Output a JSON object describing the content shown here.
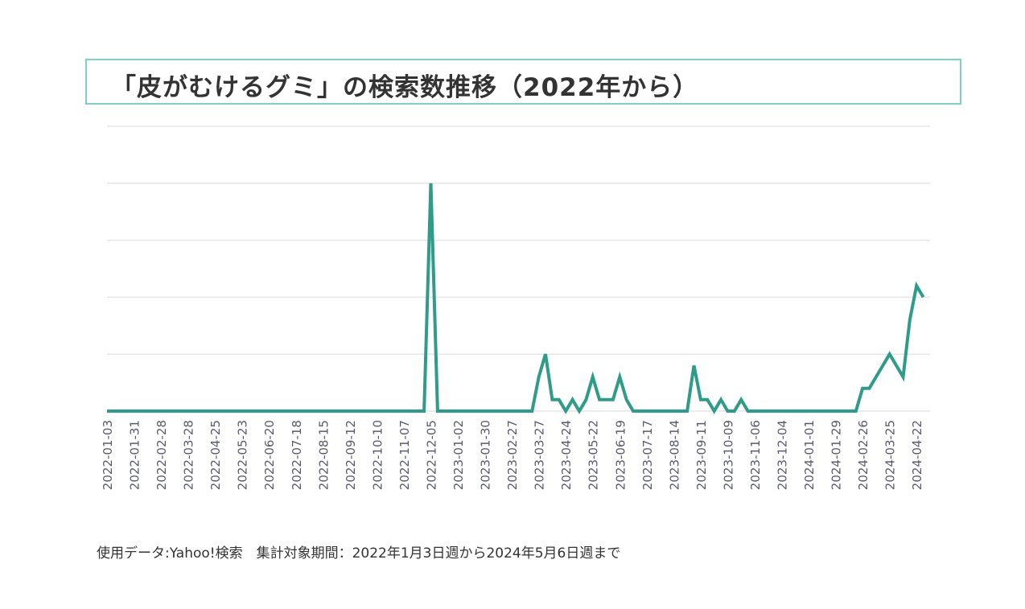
{
  "title": "「皮がむけるグミ」の検索数推移（2022年から）",
  "footer": "使用データ:Yahoo!検索　集計対象期間：2022年1月3日週から2024年5月6日週まで",
  "colors": {
    "line": "#2e9c88",
    "grid": "#e6e6e6",
    "tick_text": "#5a5a6e",
    "title_border": "#7fd2c2"
  },
  "chart_data": {
    "type": "line",
    "title": "「皮がむけるグミ」の検索数推移（2022年から）",
    "x_start": "2022-01-03",
    "x_end": "2024-05-06",
    "x_tick_labels": [
      "2022-01-03",
      "2022-01-31",
      "2022-02-28",
      "2022-03-28",
      "2022-04-25",
      "2022-05-23",
      "2022-06-20",
      "2022-07-18",
      "2022-08-15",
      "2022-09-12",
      "2022-10-10",
      "2022-11-07",
      "2022-12-05",
      "2023-01-02",
      "2023-01-30",
      "2023-02-27",
      "2023-03-27",
      "2023-04-24",
      "2023-05-22",
      "2023-06-19",
      "2023-07-17",
      "2023-08-14",
      "2023-09-11",
      "2023-10-09",
      "2023-11-06",
      "2023-12-04",
      "2024-01-01",
      "2024-01-29",
      "2024-02-26",
      "2024-03-25",
      "2024-04-22"
    ],
    "ylim": [
      0,
      5
    ],
    "grid": true,
    "y_tick_labels_shown": false,
    "series": [
      {
        "points": [
          [
            "2022-01-03",
            0
          ],
          [
            "2022-11-28",
            0
          ],
          [
            "2022-12-05",
            4
          ],
          [
            "2022-12-12",
            0
          ],
          [
            "2023-03-20",
            0
          ],
          [
            "2023-03-27",
            0.6
          ],
          [
            "2023-04-03",
            1
          ],
          [
            "2023-04-10",
            0.2
          ],
          [
            "2023-04-17",
            0.2
          ],
          [
            "2023-04-24",
            0
          ],
          [
            "2023-05-01",
            0.2
          ],
          [
            "2023-05-08",
            0
          ],
          [
            "2023-05-15",
            0.2
          ],
          [
            "2023-05-22",
            0.6
          ],
          [
            "2023-05-29",
            0.2
          ],
          [
            "2023-06-05",
            0.2
          ],
          [
            "2023-06-12",
            0.2
          ],
          [
            "2023-06-19",
            0.6
          ],
          [
            "2023-06-26",
            0.2
          ],
          [
            "2023-07-03",
            0
          ],
          [
            "2023-08-28",
            0
          ],
          [
            "2023-09-04",
            0.8
          ],
          [
            "2023-09-11",
            0.2
          ],
          [
            "2023-09-18",
            0.2
          ],
          [
            "2023-09-25",
            0
          ],
          [
            "2023-10-02",
            0.2
          ],
          [
            "2023-10-09",
            0
          ],
          [
            "2023-10-16",
            0
          ],
          [
            "2023-10-23",
            0.2
          ],
          [
            "2023-10-30",
            0
          ],
          [
            "2024-02-19",
            0
          ],
          [
            "2024-02-26",
            0.4
          ],
          [
            "2024-03-04",
            0.4
          ],
          [
            "2024-03-11",
            0.6
          ],
          [
            "2024-03-18",
            0.8
          ],
          [
            "2024-03-25",
            1
          ],
          [
            "2024-04-01",
            0.8
          ],
          [
            "2024-04-08",
            0.6
          ],
          [
            "2024-04-15",
            1.6
          ],
          [
            "2024-04-22",
            2.2
          ],
          [
            "2024-04-29",
            2
          ]
        ]
      }
    ]
  }
}
